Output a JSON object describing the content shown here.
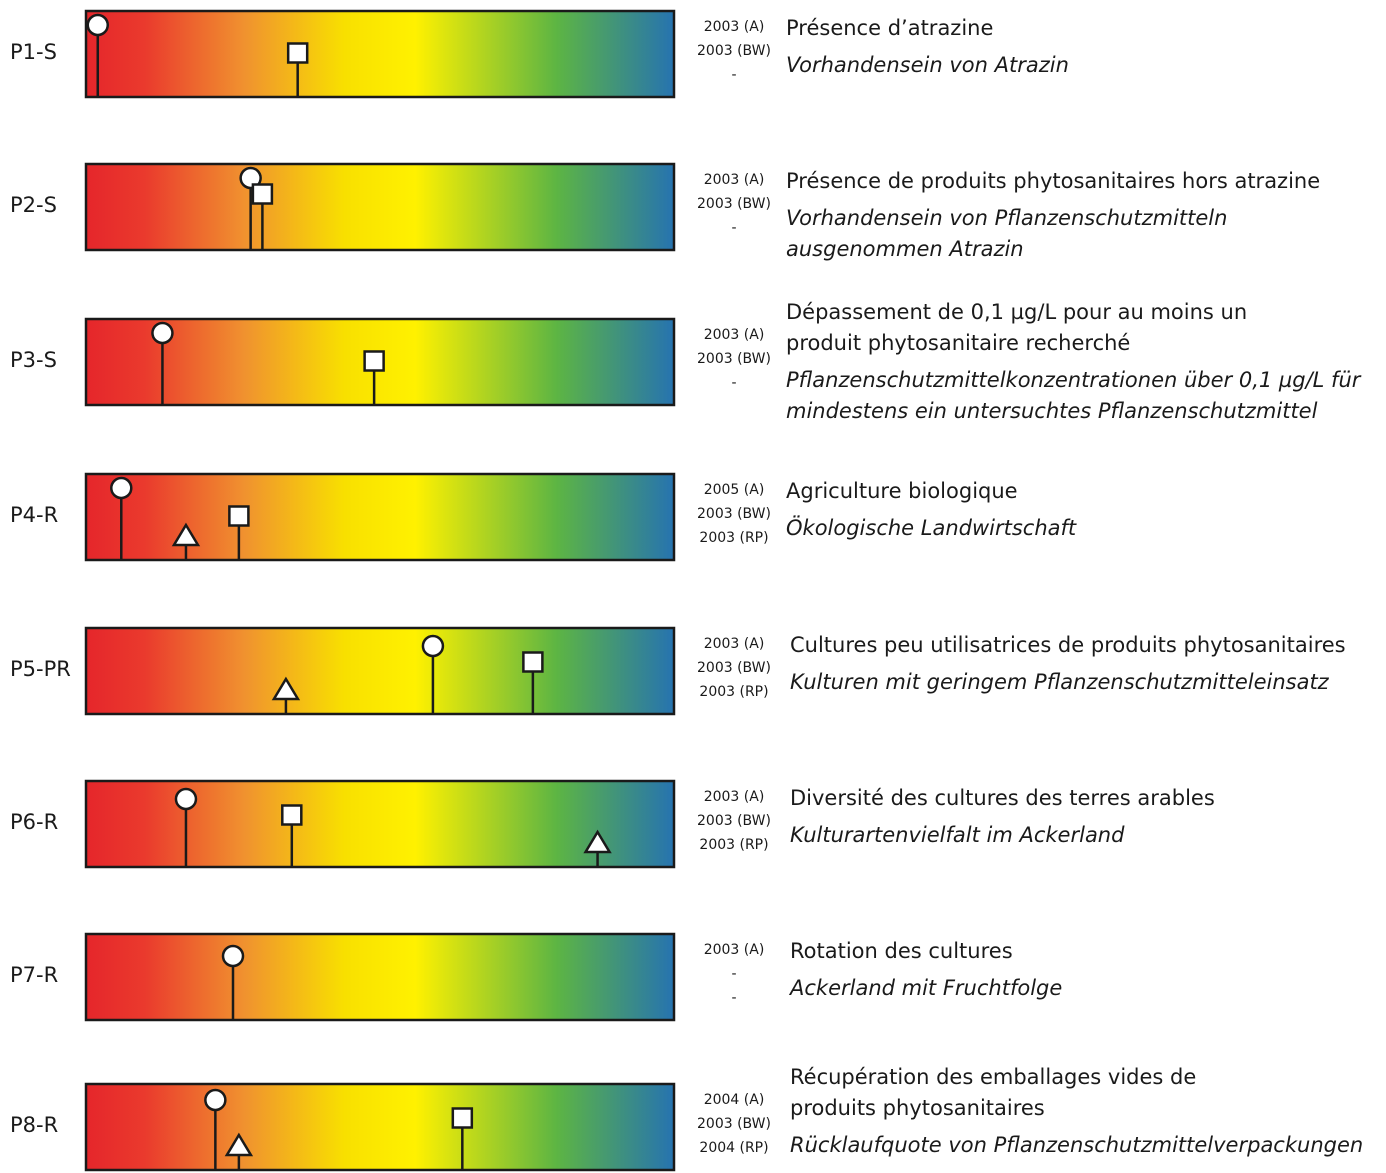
{
  "chart_data": {
    "type": "indicator-scale",
    "scale": {
      "min": 0,
      "max": 100,
      "colors": [
        "#e5262b",
        "#f0922f",
        "#f7e400",
        "#fff100",
        "#5db543",
        "#2673b0"
      ]
    },
    "markers": [
      {
        "shape": "circle",
        "name": ""
      },
      {
        "shape": "square",
        "name": ""
      },
      {
        "shape": "triangle",
        "name": ""
      }
    ],
    "indicators": [
      {
        "id": "P1-S",
        "years": [
          "2003 (A)",
          "2003 (BW)",
          "-"
        ],
        "text_fr": [
          "Présence d’atrazine"
        ],
        "text_de": [
          "Vorhandensein von Atrazin"
        ],
        "values": {
          "circle": 2,
          "square": 36,
          "triangle": null
        }
      },
      {
        "id": "P2-S",
        "years": [
          "2003 (A)",
          "2003 (BW)",
          "-"
        ],
        "text_fr": [
          "Présence de produits phytosanitaires hors atrazine"
        ],
        "text_de": [
          "Vorhandensein von Pflanzenschutzmitteln",
          "ausgenommen Atrazin"
        ],
        "values": {
          "circle": 28,
          "square": 30,
          "triangle": null
        }
      },
      {
        "id": "P3-S",
        "years": [
          "2003 (A)",
          "2003 (BW)",
          "-"
        ],
        "text_fr": [
          "Dépassement de 0,1 µg/L pour au moins un",
          "produit phytosanitaire recherché"
        ],
        "text_de": [
          "Pflanzenschutzmittelkonzentrationen über 0,1 µg/L für",
          "mindestens ein untersuchtes Pflanzenschutzmittel"
        ],
        "values": {
          "circle": 13,
          "square": 49,
          "triangle": null
        }
      },
      {
        "id": "P4-R",
        "years": [
          "2005 (A)",
          "2003 (BW)",
          "2003 (RP)"
        ],
        "text_fr": [
          "Agriculture biologique"
        ],
        "text_de": [
          "Ökologische Landwirtschaft"
        ],
        "values": {
          "circle": 6,
          "square": 26,
          "triangle": 17
        }
      },
      {
        "id": "P5-PR",
        "years": [
          "2003 (A)",
          "2003 (BW)",
          "2003 (RP)"
        ],
        "text_fr": [
          "Cultures peu utilisatrices de produits phytosanitaires"
        ],
        "text_de": [
          "Kulturen mit geringem Pflanzenschutzmitteleinsatz"
        ],
        "values": {
          "circle": 59,
          "square": 76,
          "triangle": 34
        }
      },
      {
        "id": "P6-R",
        "years": [
          "2003 (A)",
          "2003 (BW)",
          "2003 (RP)"
        ],
        "text_fr": [
          "Diversité des cultures des terres arables"
        ],
        "text_de": [
          "Kulturartenvielfalt im Ackerland"
        ],
        "values": {
          "circle": 17,
          "square": 35,
          "triangle": 87
        }
      },
      {
        "id": "P7-R",
        "years": [
          "2003 (A)",
          "-",
          "-"
        ],
        "text_fr": [
          "Rotation des cultures"
        ],
        "text_de": [
          "Ackerland mit Fruchtfolge"
        ],
        "values": {
          "circle": 25,
          "square": null,
          "triangle": null
        }
      },
      {
        "id": "P8-R",
        "years": [
          "2004 (A)",
          "2003 (BW)",
          "2004 (RP)"
        ],
        "text_fr": [
          "Récupération des emballages vides de",
          "produits phytosanitaires"
        ],
        "text_de": [
          "Rücklaufquote von Pflanzenschutzmittelverpackungen"
        ],
        "values": {
          "circle": 22,
          "square": 64,
          "triangle": 26
        }
      }
    ]
  }
}
